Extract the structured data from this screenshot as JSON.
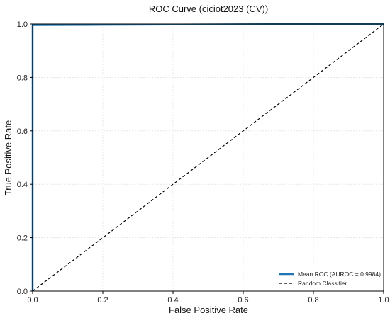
{
  "chart_data": {
    "type": "line",
    "title": "ROC Curve (ciciot2023 (CV))",
    "xlabel": "False Positive Rate",
    "ylabel": "True Positive Rate",
    "xlim": [
      0.0,
      1.0
    ],
    "ylim": [
      0.0,
      1.0
    ],
    "x_ticks": [
      "0.0",
      "0.2",
      "0.4",
      "0.6",
      "0.8",
      "1.0"
    ],
    "y_ticks": [
      "0.0",
      "0.2",
      "0.4",
      "0.6",
      "0.8",
      "1.0"
    ],
    "grid": true,
    "legend_position": "bottom-right",
    "series": [
      {
        "name": "Mean ROC (AUROC = 0.9984)",
        "color": "#1f77b4",
        "style": "solid",
        "x": [
          0.0,
          0.0,
          0.2,
          0.4,
          0.6,
          0.8,
          1.0
        ],
        "y": [
          0.0,
          0.996,
          0.997,
          0.998,
          0.999,
          0.9995,
          1.0
        ]
      },
      {
        "name": "Random Classifier",
        "color": "#000000",
        "style": "dashed",
        "x": [
          0.0,
          1.0
        ],
        "y": [
          0.0,
          1.0
        ]
      }
    ]
  }
}
